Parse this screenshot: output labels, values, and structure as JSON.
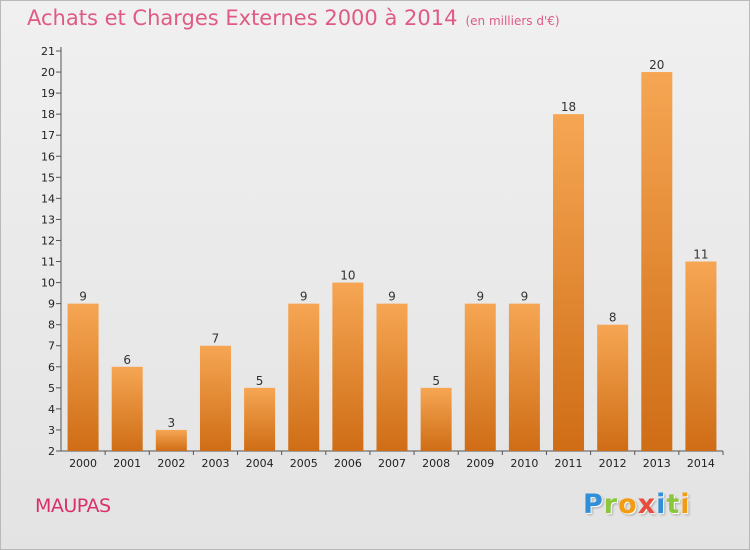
{
  "header": {
    "title": "Achats et Charges Externes 2000 à 2014",
    "subtitle": "(en milliers d'€)"
  },
  "footer": {
    "city": "MAUPAS",
    "logo_text": "Proxiti",
    "logo_letters": [
      {
        "char": "P",
        "color": "#2f8fd8"
      },
      {
        "char": "r",
        "color": "#8cc63f"
      },
      {
        "char": "o",
        "color": "#f39c12"
      },
      {
        "char": "x",
        "color": "#e84c3d"
      },
      {
        "char": "i",
        "color": "#2f8fd8"
      },
      {
        "char": "t",
        "color": "#8cc63f"
      },
      {
        "char": "i",
        "color": "#f39c12"
      }
    ]
  },
  "colors": {
    "bar_top": "#f6a653",
    "bar_bottom": "#cf6d16",
    "title": "#e05a84",
    "city": "#d9306c"
  },
  "chart_data": {
    "type": "bar",
    "title": "Achats et Charges Externes 2000 à 2014",
    "subtitle": "(en milliers d'€)",
    "categories": [
      "2000",
      "2001",
      "2002",
      "2003",
      "2004",
      "2005",
      "2006",
      "2007",
      "2008",
      "2009",
      "2010",
      "2011",
      "2012",
      "2013",
      "2014"
    ],
    "values": [
      9,
      6,
      3,
      7,
      5,
      9,
      10,
      9,
      5,
      9,
      9,
      18,
      8,
      20,
      11
    ],
    "ylim": [
      2,
      21
    ],
    "yticks": [
      2,
      3,
      4,
      5,
      6,
      7,
      8,
      9,
      10,
      11,
      12,
      13,
      14,
      15,
      16,
      17,
      18,
      19,
      20,
      21
    ],
    "grid": false,
    "data_labels": true
  }
}
